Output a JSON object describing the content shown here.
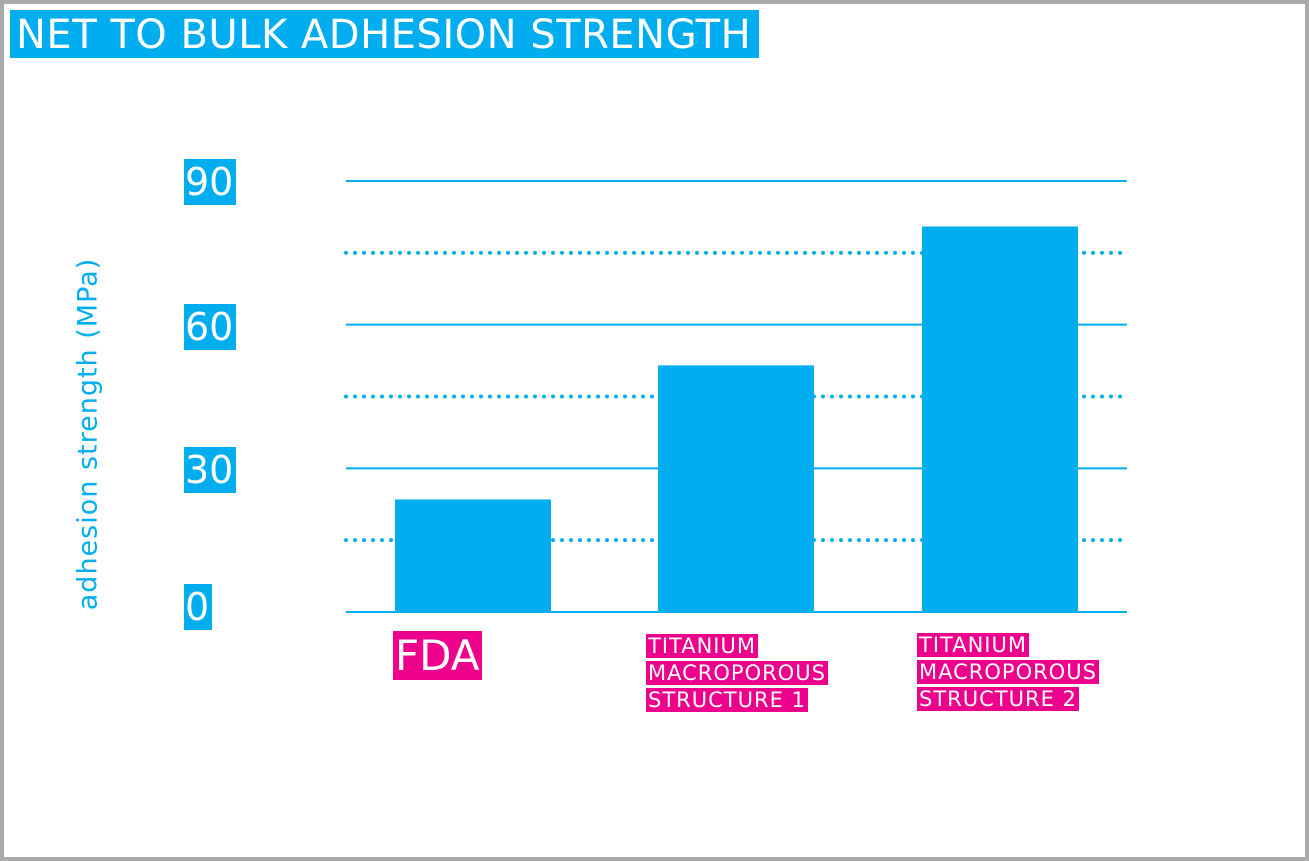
{
  "title": "NET TO BULK ADHESION STRENGTH",
  "colors": {
    "accent": "#00aeef",
    "category": "#ec008c",
    "frame": "#aaaaaa"
  },
  "chart_data": {
    "type": "bar",
    "ylabel": "adhesion strength (MPa)",
    "xlabel": "",
    "ylim": [
      0,
      90
    ],
    "yticks": [
      "0",
      "30",
      "60",
      "90"
    ],
    "grid_solid": [
      30,
      60,
      90
    ],
    "grid_dotted": [
      15,
      45,
      75
    ],
    "categories": [
      {
        "line1": "FDA",
        "line2": "",
        "line3": ""
      },
      {
        "line1": "TITANIUM",
        "line2": "MACROPOROUS",
        "line3": "STRUCTURE 1"
      },
      {
        "line1": "TITANIUM",
        "line2": "MACROPOROUS",
        "line3": "STRUCTURE 2"
      }
    ],
    "values": [
      23.5,
      51.5,
      80.5
    ]
  }
}
